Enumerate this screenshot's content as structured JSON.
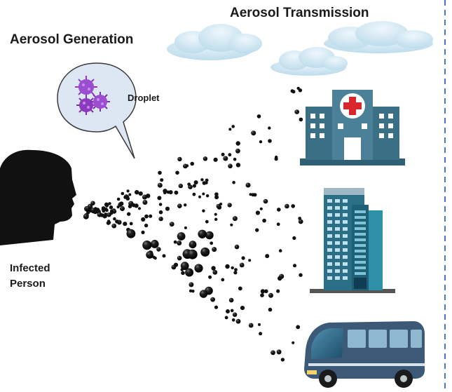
{
  "labels": {
    "aerosol_generation": "Aerosol Generation",
    "aerosol_transmission": "Aerosol Transmission",
    "droplet": "Droplet",
    "infected_line1": "Infected",
    "infected_line2": "Person"
  },
  "icons": {
    "person": "infected-person-silhouette-icon",
    "virus": "virus-icon",
    "cloud": "cloud-icon",
    "hospital": "hospital-icon",
    "building": "office-building-icon",
    "bus": "bus-icon"
  },
  "colors": {
    "hospital_blue": "#3b6f86",
    "hospital_cross": "#d9252b",
    "building_teal": "#2e8fa8",
    "bus_body": "#3c5a78",
    "virus_purple": "#8b3bbf",
    "bubble_fill": "#dde6f3",
    "cloud": "#c9e3f2",
    "particle": "#111111",
    "divider": "#4a78b5"
  }
}
